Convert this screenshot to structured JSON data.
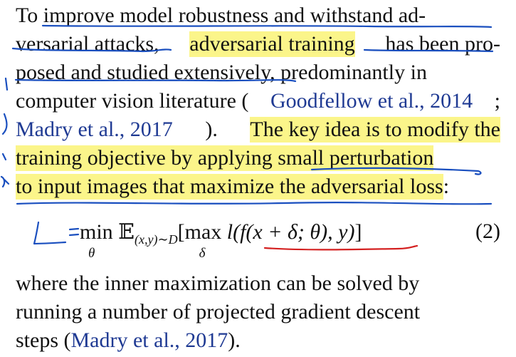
{
  "paragraph1": {
    "l1": [
      "To improve model robustness and withstand ad-"
    ],
    "l2": {
      "a": "versarial attacks,",
      "hl": "adversarial training",
      "b": "has been pro-"
    },
    "l3": "posed and studied extensively, predominantly in",
    "l4": {
      "a": "computer vision literature (",
      "cite1": "Goodfellow et al., 2014",
      "b": ";"
    },
    "l5": {
      "cite2": "Madry et al., 2017",
      "a": ").",
      "hl": "The key idea is to modify the"
    },
    "l6": {
      "hl": "training objective by applying small perturbation"
    },
    "l7": {
      "hl": "to input images that maximize the adversarial loss",
      "b": ":"
    }
  },
  "equation": {
    "handwritten_lhs": "L =",
    "min": "min",
    "min_sub": "θ",
    "expect": "𝔼",
    "expect_sub": "(x,y)∼D",
    "bracket_open": "[",
    "max": "max",
    "max_sub": "δ",
    "loss": "l(f(x + δ; θ), y)",
    "bracket_close": "]",
    "number": "(2)"
  },
  "paragraph2": {
    "l1": "where the inner maximization can be solved by",
    "l2": "running a number of projected gradient descent",
    "l3": {
      "a": "steps (",
      "cite": "Madry et al., 2017",
      "b": ")."
    }
  },
  "colors": {
    "highlight": "#fbf58a",
    "citation": "#1f3a93",
    "ink_blue": "#1a4fbf",
    "ink_red": "#d42020"
  }
}
